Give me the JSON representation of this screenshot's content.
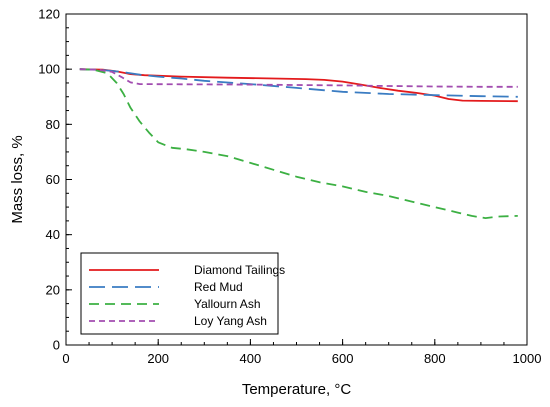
{
  "chart_data": {
    "type": "line",
    "xlabel": "Temperature, °C",
    "ylabel": "Mass loss, %",
    "xlim": [
      0,
      1000
    ],
    "ylim": [
      0,
      120
    ],
    "xticks": [
      0,
      200,
      400,
      600,
      800,
      1000
    ],
    "yticks": [
      0,
      20,
      40,
      60,
      80,
      100,
      120
    ],
    "x_minor_step": 50,
    "y_minor_step": 5,
    "grid": false,
    "legend_position": "bottom-left",
    "series": [
      {
        "name": "Diamond Tailings",
        "color": "#e31a1c",
        "dash": "solid",
        "points": [
          [
            30,
            100
          ],
          [
            80,
            99.8
          ],
          [
            110,
            99.2
          ],
          [
            140,
            98.2
          ],
          [
            170,
            97.8
          ],
          [
            250,
            97.3
          ],
          [
            350,
            96.9
          ],
          [
            450,
            96.6
          ],
          [
            520,
            96.4
          ],
          [
            560,
            96.1
          ],
          [
            600,
            95.5
          ],
          [
            640,
            94.4
          ],
          [
            680,
            93.2
          ],
          [
            720,
            92.2
          ],
          [
            760,
            91.4
          ],
          [
            800,
            90.4
          ],
          [
            830,
            89.2
          ],
          [
            860,
            88.6
          ],
          [
            900,
            88.5
          ],
          [
            980,
            88.4
          ]
        ]
      },
      {
        "name": "Red Mud",
        "color": "#3a7cc2",
        "dash": "long-dash",
        "points": [
          [
            30,
            100
          ],
          [
            80,
            99.7
          ],
          [
            120,
            99
          ],
          [
            160,
            98
          ],
          [
            200,
            97.3
          ],
          [
            250,
            96.6
          ],
          [
            300,
            95.8
          ],
          [
            400,
            94.6
          ],
          [
            500,
            93.2
          ],
          [
            600,
            91.8
          ],
          [
            700,
            91
          ],
          [
            800,
            90.6
          ],
          [
            900,
            90.2
          ],
          [
            980,
            90
          ]
        ]
      },
      {
        "name": "Yallourn Ash",
        "color": "#3cb043",
        "dash": "dash",
        "points": [
          [
            30,
            100
          ],
          [
            60,
            99.8
          ],
          [
            90,
            98.5
          ],
          [
            110,
            95
          ],
          [
            125,
            91
          ],
          [
            140,
            86
          ],
          [
            160,
            81
          ],
          [
            180,
            77
          ],
          [
            200,
            73.5
          ],
          [
            230,
            71.5
          ],
          [
            260,
            71
          ],
          [
            300,
            70
          ],
          [
            350,
            68.5
          ],
          [
            400,
            66
          ],
          [
            450,
            63.5
          ],
          [
            500,
            61
          ],
          [
            550,
            59
          ],
          [
            600,
            57.5
          ],
          [
            650,
            55.5
          ],
          [
            700,
            54
          ],
          [
            750,
            52
          ],
          [
            800,
            50
          ],
          [
            850,
            48
          ],
          [
            880,
            46.8
          ],
          [
            910,
            46
          ],
          [
            940,
            46.6
          ],
          [
            980,
            46.8
          ]
        ]
      },
      {
        "name": "Loy Yang Ash",
        "color": "#a24db0",
        "dash": "short-dash",
        "points": [
          [
            30,
            100
          ],
          [
            70,
            99.8
          ],
          [
            100,
            99
          ],
          [
            120,
            97.2
          ],
          [
            140,
            95.2
          ],
          [
            160,
            94.6
          ],
          [
            250,
            94.5
          ],
          [
            400,
            94.4
          ],
          [
            600,
            94.1
          ],
          [
            700,
            93.9
          ],
          [
            800,
            93.7
          ],
          [
            900,
            93.6
          ],
          [
            980,
            93.6
          ]
        ]
      }
    ]
  }
}
